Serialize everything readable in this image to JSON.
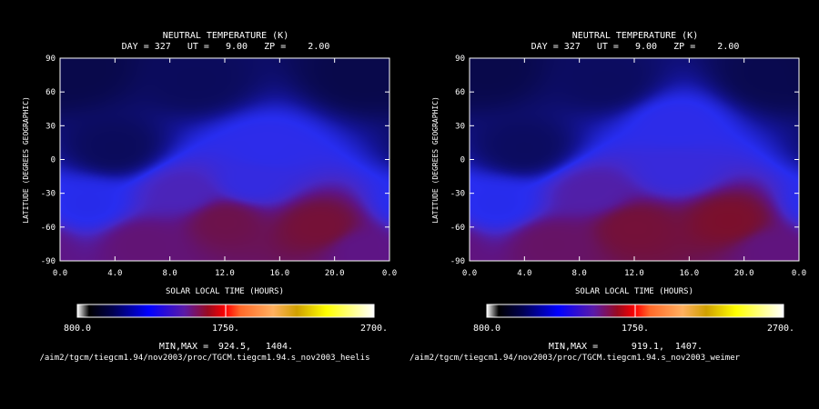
{
  "chart_data": [
    {
      "type": "heatmap",
      "title": "NEUTRAL TEMPERATURE (K)",
      "subtitle": "DAY = 327   UT =   9.00   ZP =    2.00",
      "xlabel": "SOLAR LOCAL TIME (HOURS)",
      "ylabel": "LATITUDE (DEGREES GEOGRAPHIC)",
      "xlim": [
        0,
        24
      ],
      "ylim": [
        -90,
        90
      ],
      "x_ticks": [
        "0.0",
        "4.0",
        "8.0",
        "12.0",
        "16.0",
        "20.0",
        "0.0"
      ],
      "y_ticks": [
        "90",
        "60",
        "30",
        "0",
        "-30",
        "-60",
        "-90"
      ],
      "colorbar": {
        "min": 800.0,
        "max": 2700.0,
        "labels": [
          "800.0",
          "1750.",
          "2700."
        ]
      },
      "minmax_label": "MIN,MAX =",
      "min_text": "924.5,",
      "max_text": "1404.",
      "min": 924.5,
      "max": 1404.0,
      "file_text": "/aim2/tgcm/tiegcm1.94/nov2003/proc/TGCM.tiegcm1.94.s_nov2003_heelis",
      "field": [
        {
          "x": 1,
          "y": 80,
          "v": 930
        },
        {
          "x": 10,
          "y": 70,
          "v": 950
        },
        {
          "x": 22,
          "y": 75,
          "v": 930
        },
        {
          "x": 4,
          "y": 10,
          "v": 950
        },
        {
          "x": 15,
          "y": 10,
          "v": 1130
        },
        {
          "x": 14,
          "y": -20,
          "v": 1150
        },
        {
          "x": 2,
          "y": -40,
          "v": 1110
        },
        {
          "x": 9,
          "y": -30,
          "v": 1220
        },
        {
          "x": 12,
          "y": -55,
          "v": 1350
        },
        {
          "x": 19,
          "y": -60,
          "v": 1380
        },
        {
          "x": 6,
          "y": -75,
          "v": 1300
        },
        {
          "x": 22,
          "y": -80,
          "v": 1280
        }
      ]
    },
    {
      "type": "heatmap",
      "title": "NEUTRAL TEMPERATURE (K)",
      "subtitle": "DAY = 327   UT =   9.00   ZP =    2.00",
      "xlabel": "SOLAR LOCAL TIME (HOURS)",
      "ylabel": "LATITUDE (DEGREES GEOGRAPHIC)",
      "xlim": [
        0,
        24
      ],
      "ylim": [
        -90,
        90
      ],
      "x_ticks": [
        "0.0",
        "4.0",
        "8.0",
        "12.0",
        "16.0",
        "20.0",
        "0.0"
      ],
      "y_ticks": [
        "90",
        "60",
        "30",
        "0",
        "-30",
        "-60",
        "-90"
      ],
      "colorbar": {
        "min": 800.0,
        "max": 2700.0,
        "labels": [
          "800.0",
          "1750.",
          "2700."
        ]
      },
      "minmax_label": "MIN,MAX =",
      "min_text": "919.1,",
      "max_text": "1407.",
      "min": 919.1,
      "max": 1407.0,
      "file_text": "/aim2/tgcm/tiegcm1.94/nov2003/proc/TGCM.tiegcm1.94.s_nov2003_weimer",
      "field": [
        {
          "x": 1,
          "y": 80,
          "v": 925
        },
        {
          "x": 10,
          "y": 70,
          "v": 950
        },
        {
          "x": 22,
          "y": 75,
          "v": 930
        },
        {
          "x": 4,
          "y": 10,
          "v": 950
        },
        {
          "x": 15,
          "y": 30,
          "v": 1130
        },
        {
          "x": 15,
          "y": -10,
          "v": 1160
        },
        {
          "x": 2,
          "y": -40,
          "v": 1110
        },
        {
          "x": 9,
          "y": -30,
          "v": 1240
        },
        {
          "x": 12,
          "y": -60,
          "v": 1380
        },
        {
          "x": 19,
          "y": -55,
          "v": 1400
        },
        {
          "x": 6,
          "y": -75,
          "v": 1320
        },
        {
          "x": 22,
          "y": -80,
          "v": 1290
        }
      ]
    }
  ]
}
